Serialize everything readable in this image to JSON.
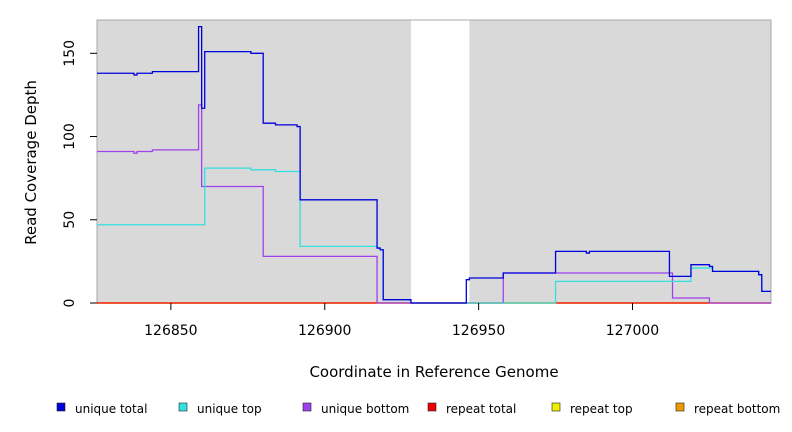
{
  "chart_data": {
    "type": "line",
    "xlabel": "Coordinate in Reference Genome",
    "ylabel": "Read Coverage Depth",
    "xlim": [
      126826,
      127045
    ],
    "ylim": [
      0,
      170
    ],
    "x_ticks": [
      126850,
      126900,
      126950,
      127000
    ],
    "y_ticks": [
      0,
      50,
      100,
      150
    ],
    "shaded_regions": [
      [
        126826,
        126928
      ],
      [
        126947,
        127045
      ]
    ],
    "legend_position": "bottom",
    "series": [
      {
        "name": "unique total",
        "color": "#0000dd",
        "x": [
          126826,
          126838,
          126839,
          126844,
          126859,
          126860,
          126861,
          126876,
          126880,
          126884,
          126891,
          126892,
          126917,
          126918,
          126919,
          126920,
          126928,
          126946,
          126947,
          126958,
          126975,
          126985,
          126986,
          127012,
          127019,
          127025,
          127026,
          127041,
          127042,
          127045
        ],
        "y": [
          138,
          137,
          138,
          139,
          166,
          117,
          151,
          150,
          108,
          107,
          106,
          62,
          33,
          32,
          2,
          2,
          0,
          14,
          15,
          18,
          31,
          30,
          31,
          16,
          23,
          22,
          19,
          17,
          7,
          7
        ]
      },
      {
        "name": "unique top",
        "color": "#33e0e0",
        "x": [
          126826,
          126860,
          126861,
          126876,
          126884,
          126891,
          126892,
          126917,
          126918,
          126919,
          126920,
          126928,
          126946,
          126950,
          126975,
          126986,
          127017,
          127019,
          127026,
          127041,
          127042,
          127045
        ],
        "y": [
          47,
          47,
          81,
          80,
          79,
          79,
          34,
          33,
          32,
          2,
          2,
          0,
          0,
          0,
          13,
          13,
          13,
          21,
          19,
          17,
          7,
          7
        ]
      },
      {
        "name": "unique bottom",
        "color": "#a040ee",
        "x": [
          126826,
          126838,
          126839,
          126844,
          126859,
          126860,
          126880,
          126917,
          126918,
          126946,
          126958,
          126975,
          127013,
          127025,
          127026,
          127045
        ],
        "y": [
          91,
          90,
          91,
          92,
          119,
          70,
          28,
          0,
          0,
          0,
          18,
          18,
          3,
          0,
          0,
          0
        ]
      },
      {
        "name": "repeat total",
        "color": "#ee0000",
        "x": [
          126826,
          127045
        ],
        "y": [
          0,
          0
        ]
      },
      {
        "name": "repeat top",
        "color": "#eeee00",
        "x": [
          126826,
          127045
        ],
        "y": [
          0,
          0
        ]
      },
      {
        "name": "repeat bottom",
        "color": "#ee9900",
        "x": [
          126826,
          127045
        ],
        "y": [
          0,
          0
        ]
      }
    ]
  }
}
